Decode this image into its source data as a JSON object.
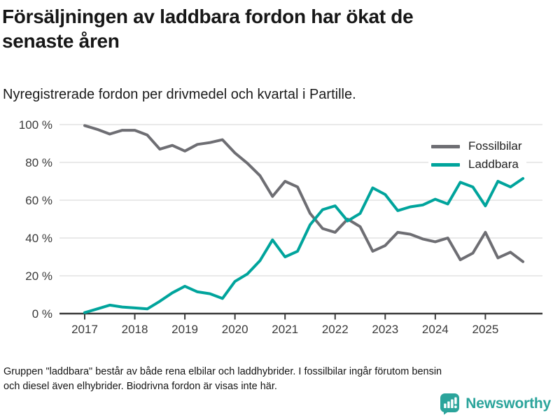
{
  "header": {
    "title_line1": "Försäljningen av laddbara fordon har ökat de",
    "title_line2": "senaste åren",
    "subtitle": "Nyregistrerade fordon per drivmedel och kvartal i Partille."
  },
  "chart_data": {
    "type": "line",
    "title": "Försäljningen av laddbara fordon har ökat de senaste åren",
    "subtitle": "Nyregistrerade fordon per drivmedel och kvartal i Partille.",
    "grid": "horizontal",
    "legend_position": "top-right",
    "ylim": [
      0,
      100
    ],
    "y_axis": {
      "tick_labels": [
        "100 %",
        "80 %",
        "60 %",
        "40 %",
        "20 %",
        "0 %"
      ],
      "unit": "%"
    },
    "x_axis": {
      "tick_labels": [
        "2017",
        "2018",
        "2019",
        "2020",
        "2021",
        "2022",
        "2023",
        "2024",
        "2025"
      ]
    },
    "categories": [
      "2017 Q1",
      "2017 Q2",
      "2017 Q3",
      "2017 Q4",
      "2018 Q1",
      "2018 Q2",
      "2018 Q3",
      "2018 Q4",
      "2019 Q1",
      "2019 Q2",
      "2019 Q3",
      "2019 Q4",
      "2020 Q1",
      "2020 Q2",
      "2020 Q3",
      "2020 Q4",
      "2021 Q1",
      "2021 Q2",
      "2021 Q3",
      "2021 Q4",
      "2022 Q1",
      "2022 Q2",
      "2022 Q3",
      "2022 Q4",
      "2023 Q1",
      "2023 Q2",
      "2023 Q3",
      "2023 Q4",
      "2024 Q1",
      "2024 Q2",
      "2024 Q3",
      "2024 Q4",
      "2025 Q1",
      "2025 Q2",
      "2025 Q3",
      "2025 Q4"
    ],
    "series": [
      {
        "name": "Fossilbilar",
        "color": "#6e6e73",
        "values": [
          99.5,
          97.5,
          95,
          97,
          97,
          94.5,
          87,
          89,
          86,
          89.5,
          90.5,
          92,
          85,
          79.5,
          73,
          62,
          70,
          67,
          53,
          45,
          43,
          50,
          46,
          33,
          36,
          43,
          42,
          39.5,
          38,
          40,
          28.5,
          32,
          43,
          29.5,
          32.5,
          27.5
        ]
      },
      {
        "name": "Laddbara",
        "color": "#00a49c",
        "values": [
          0.5,
          2.5,
          4.5,
          3.5,
          3,
          2.5,
          6.5,
          11,
          14.5,
          11.5,
          10.5,
          8,
          17,
          21,
          28,
          39,
          30,
          33,
          47,
          55,
          57,
          49,
          53,
          66.5,
          63,
          54.5,
          56.5,
          57.5,
          60.5,
          58,
          69.5,
          67,
          57,
          70,
          67,
          71.5
        ]
      }
    ]
  },
  "legend": {
    "items": [
      {
        "label": "Fossilbilar",
        "color": "#6e6e73"
      },
      {
        "label": "Laddbara",
        "color": "#00a49c"
      }
    ]
  },
  "footnote": {
    "line1": "Gruppen \"laddbara\" består av både rena elbilar och laddhybrider. I fossilbilar ingår förutom bensin",
    "line2": "och diesel även elhybrider. Biodrivna fordon är visas inte här."
  },
  "brand": {
    "name": "Newsworthy",
    "color": "#2ba49b",
    "icon": "bar-chart-speech-bubble-icon"
  },
  "style": {
    "grid_color": "#e2e2e2",
    "axis_color": "#3a3a3a",
    "tick_label_color": "#3a3a3a"
  }
}
